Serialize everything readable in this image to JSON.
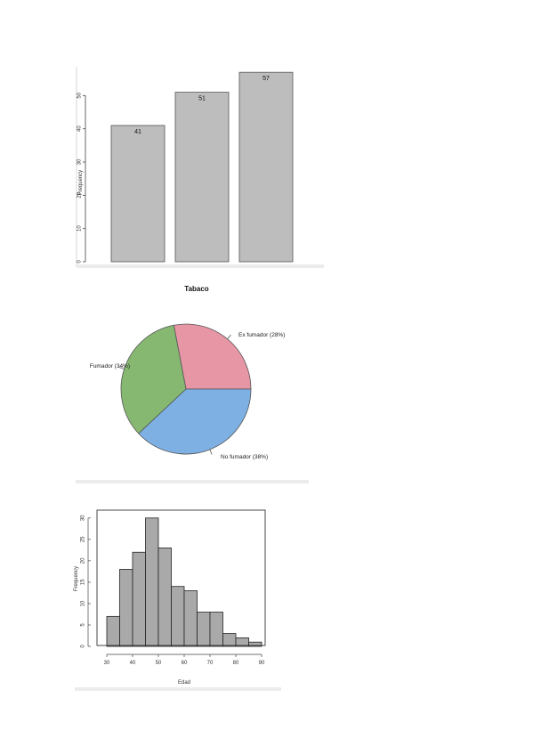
{
  "colors": {
    "bar_fill": "#bdbdbd",
    "hist_fill": "#a9a9a9",
    "pie_ex_fumador": "#e796a6",
    "pie_fumador": "#86b872",
    "pie_no_fumador": "#7eb0e4"
  },
  "chart_data": [
    {
      "type": "bar",
      "categories": [
        "",
        "",
        ""
      ],
      "values": [
        41,
        51,
        57
      ],
      "value_labels": [
        "41",
        "51",
        "57"
      ],
      "ylabel": "Frequency",
      "yticks": [
        "0",
        "10",
        "20",
        "30",
        "40",
        "50"
      ],
      "ylim": [
        0,
        60
      ],
      "grid": false
    },
    {
      "type": "pie",
      "title": "Tabaco",
      "slices": [
        {
          "label": "Ex fumador (28%)",
          "value": 28,
          "color": "#e796a6"
        },
        {
          "label": "No fumador (38%)",
          "value": 38,
          "color": "#7eb0e4"
        },
        {
          "label": "Fumador (34%)",
          "value": 34,
          "color": "#86b872"
        }
      ]
    },
    {
      "type": "bar",
      "subtype": "histogram",
      "bin_edges": [
        30,
        35,
        40,
        45,
        50,
        55,
        60,
        65,
        70,
        75,
        80,
        85,
        90
      ],
      "values": [
        7,
        18,
        22,
        30,
        23,
        14,
        13,
        8,
        8,
        3,
        2,
        1
      ],
      "xlabel": "Edad",
      "ylabel": "Frequency",
      "xticks": [
        "30",
        "40",
        "50",
        "60",
        "70",
        "80",
        "90"
      ],
      "yticks": [
        "0",
        "5",
        "10",
        "15",
        "20",
        "25",
        "30"
      ],
      "xlim": [
        30,
        90
      ],
      "ylim": [
        0,
        31
      ],
      "grid": false
    }
  ]
}
